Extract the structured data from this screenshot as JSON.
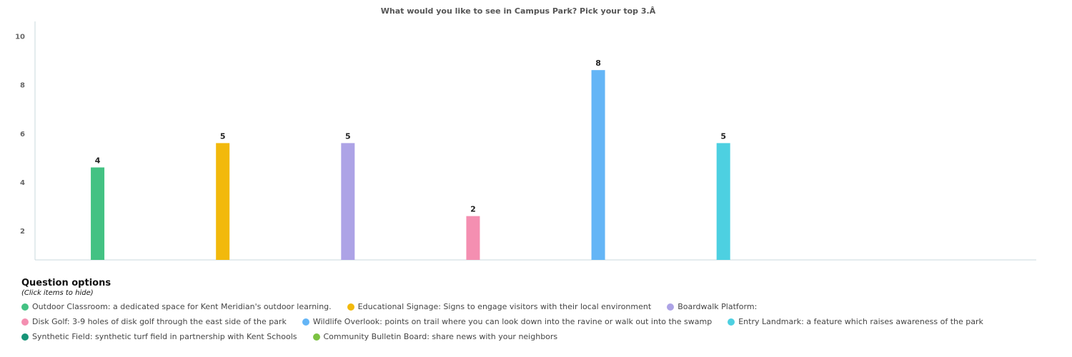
{
  "chart_data": {
    "type": "bar",
    "title": "What would you like to see in Campus Park? Pick your top 3.Â",
    "xlabel": "",
    "ylabel": "",
    "ylim": [
      0.8,
      10.6
    ],
    "yticks": [
      2,
      4,
      6,
      8,
      10
    ],
    "grid": false,
    "legend_position": "bottom",
    "categories": [
      "Outdoor Classroom: a dedicated space for Kent Meridian's outdoor learning.",
      "Educational Signage: Signs to engage visitors with their local environment",
      "Boardwalk Platform:",
      "Disk Golf: 3-9 holes of disk golf through the east side of the park",
      "Wildlife Overlook: points on trail where you can look down into the ravine or walk out into the swamp",
      "Entry Landmark: a feature which raises awareness of the park",
      "Synthetic Field: synthetic turf field in partnership with Kent Schools",
      "Community Bulletin Board: share news with your neighbors"
    ],
    "values": [
      4,
      5,
      5,
      2,
      8,
      5,
      0,
      0
    ],
    "data_labels": [
      "4",
      "5",
      "5",
      "2",
      "8",
      "5",
      "",
      ""
    ],
    "colors": [
      "#43c283",
      "#f2b90c",
      "#ada3e6",
      "#f48fb1",
      "#64b5f6",
      "#4dd0e1",
      "#169477",
      "#7cc242"
    ]
  },
  "legend": {
    "title": "Question options",
    "subtitle": "(Click items to hide)"
  }
}
